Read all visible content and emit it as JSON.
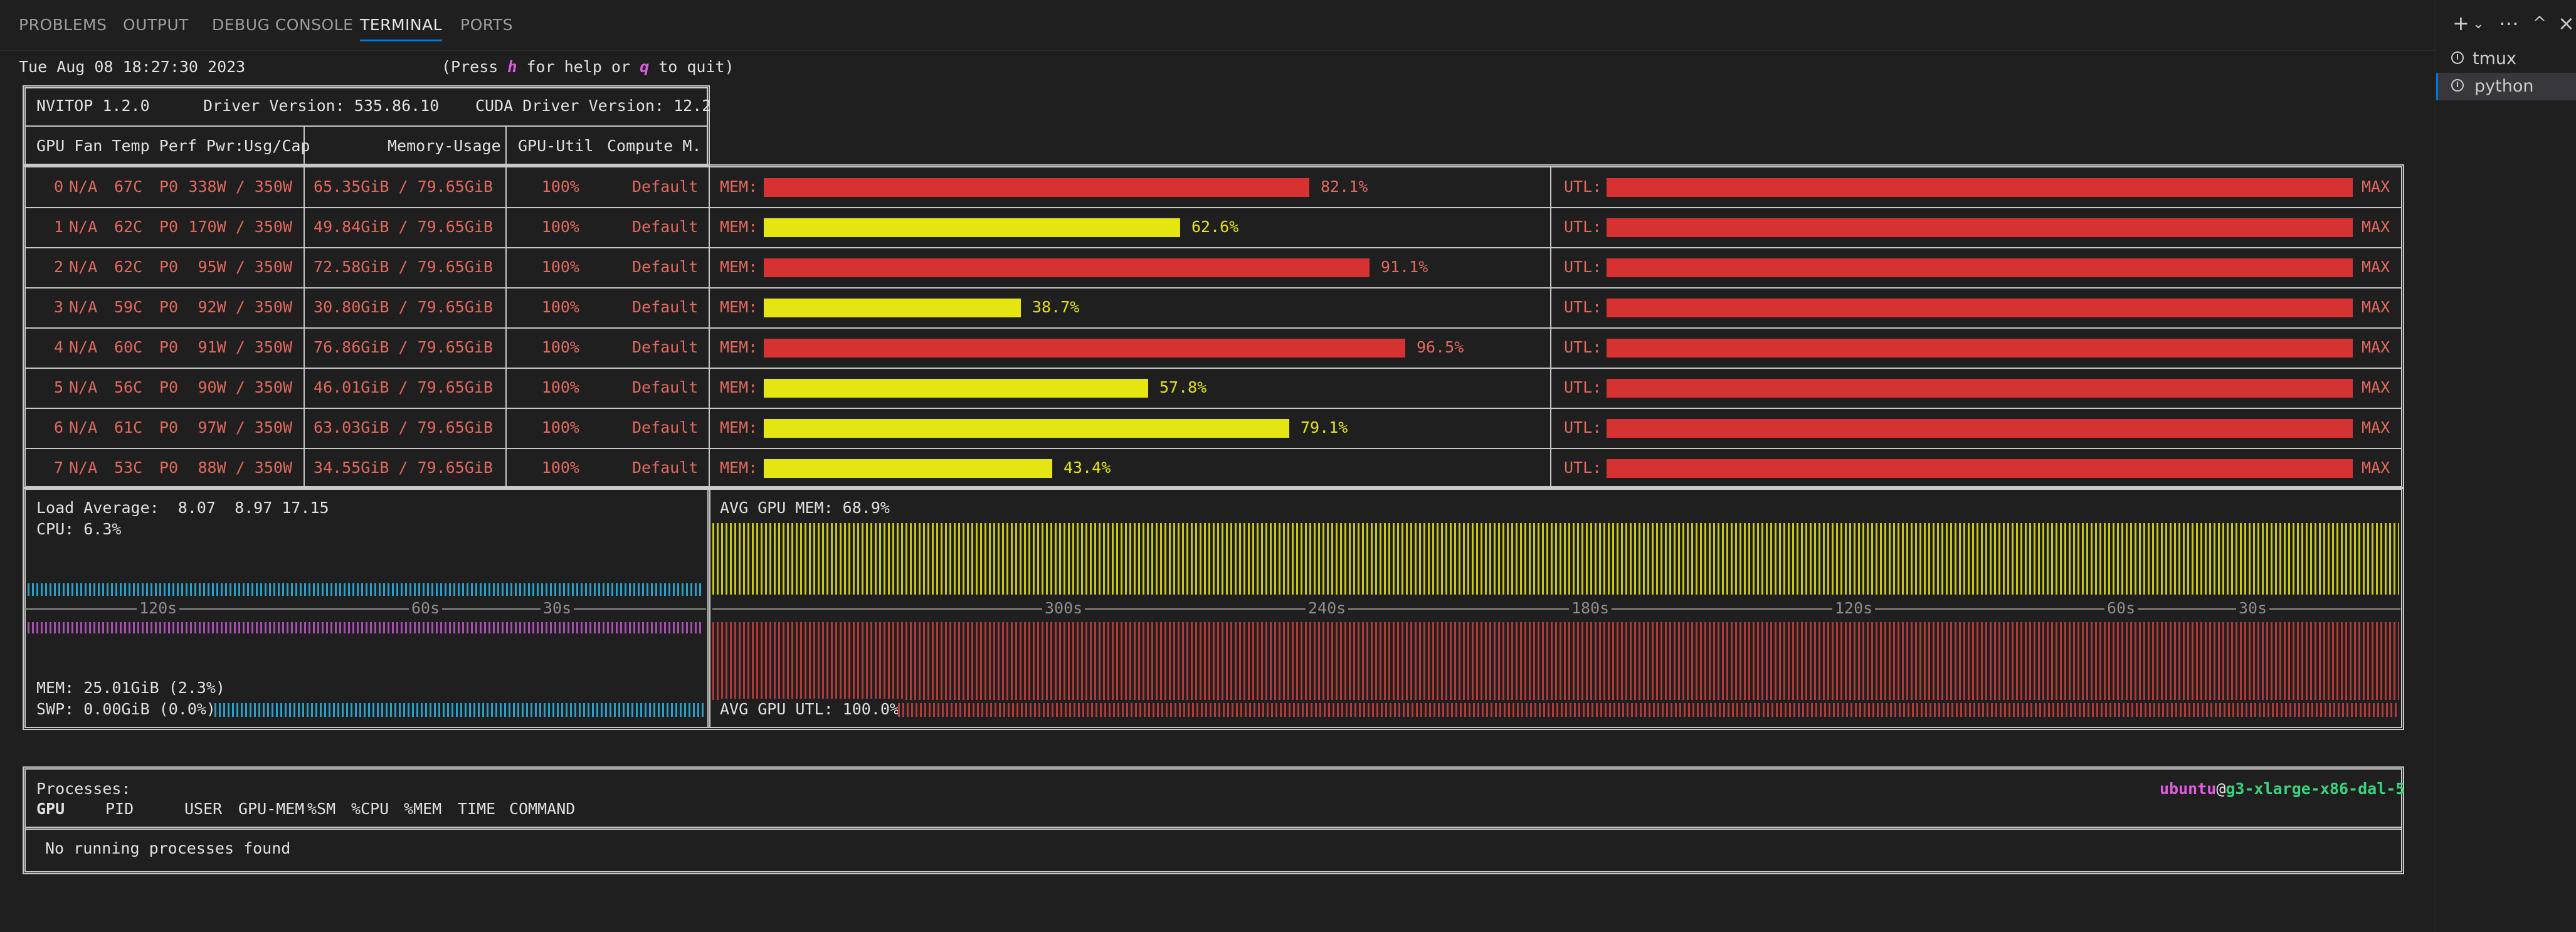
{
  "panel_tabs": [
    "PROBLEMS",
    "OUTPUT",
    "DEBUG CONSOLE",
    "TERMINAL",
    "PORTS"
  ],
  "active_tab": "TERMINAL",
  "toolbar_icons": [
    "plus-icon",
    "chevron-down-icon",
    "more-icon",
    "maximize-icon",
    "close-icon"
  ],
  "terminals": [
    {
      "name": "tmux",
      "selected": false
    },
    {
      "name": "python",
      "selected": true
    }
  ],
  "header": {
    "datetime": "Tue Aug 08 18:27:30 2023",
    "help_pre": "(Press ",
    "help_h": "h",
    "help_mid": " for help or ",
    "help_q": "q",
    "help_post": " to quit)"
  },
  "summary": {
    "nvitop": "NVITOP 1.2.0",
    "driver": "Driver Version: 535.86.10",
    "cuda": "CUDA Driver Version: 12.2"
  },
  "columns": {
    "gpu_info": "GPU Fan Temp Perf Pwr:Usg/Cap",
    "memory": "Memory-Usage",
    "util": "GPU-Util",
    "compute": "Compute M."
  },
  "mem_label": "MEM:",
  "utl_label": "UTL:",
  "gpus": [
    {
      "id": "0",
      "fan": "N/A",
      "temp": "67C",
      "perf": "P0",
      "pwr": "338W / 350W",
      "mem": "65.35GiB / 79.65GiB",
      "util": "100%",
      "mode": "Default",
      "mem_pct": 82.1,
      "mem_pct_label": "82.1%",
      "utl_label": "MAX"
    },
    {
      "id": "1",
      "fan": "N/A",
      "temp": "62C",
      "perf": "P0",
      "pwr": "170W / 350W",
      "mem": "49.84GiB / 79.65GiB",
      "util": "100%",
      "mode": "Default",
      "mem_pct": 62.6,
      "mem_pct_label": "62.6%",
      "utl_label": "MAX"
    },
    {
      "id": "2",
      "fan": "N/A",
      "temp": "62C",
      "perf": "P0",
      "pwr": "95W / 350W",
      "mem": "72.58GiB / 79.65GiB",
      "util": "100%",
      "mode": "Default",
      "mem_pct": 91.1,
      "mem_pct_label": "91.1%",
      "utl_label": "MAX"
    },
    {
      "id": "3",
      "fan": "N/A",
      "temp": "59C",
      "perf": "P0",
      "pwr": "92W / 350W",
      "mem": "30.80GiB / 79.65GiB",
      "util": "100%",
      "mode": "Default",
      "mem_pct": 38.7,
      "mem_pct_label": "38.7%",
      "utl_label": "MAX"
    },
    {
      "id": "4",
      "fan": "N/A",
      "temp": "60C",
      "perf": "P0",
      "pwr": "91W / 350W",
      "mem": "76.86GiB / 79.65GiB",
      "util": "100%",
      "mode": "Default",
      "mem_pct": 96.5,
      "mem_pct_label": "96.5%",
      "utl_label": "MAX"
    },
    {
      "id": "5",
      "fan": "N/A",
      "temp": "56C",
      "perf": "P0",
      "pwr": "90W / 350W",
      "mem": "46.01GiB / 79.65GiB",
      "util": "100%",
      "mode": "Default",
      "mem_pct": 57.8,
      "mem_pct_label": "57.8%",
      "utl_label": "MAX"
    },
    {
      "id": "6",
      "fan": "N/A",
      "temp": "61C",
      "perf": "P0",
      "pwr": "97W / 350W",
      "mem": "63.03GiB / 79.65GiB",
      "util": "100%",
      "mode": "Default",
      "mem_pct": 79.1,
      "mem_pct_label": "79.1%",
      "utl_label": "MAX"
    },
    {
      "id": "7",
      "fan": "N/A",
      "temp": "53C",
      "perf": "P0",
      "pwr": "88W / 350W",
      "mem": "34.55GiB / 79.65GiB",
      "util": "100%",
      "mode": "Default",
      "mem_pct": 43.4,
      "mem_pct_label": "43.4%",
      "utl_label": "MAX"
    }
  ],
  "host": {
    "load": "Load Average:  8.07  8.97 17.15",
    "cpu": "CPU: 6.3%",
    "mem": "MEM: 25.01GiB (2.3%)",
    "swp": "SWP: 0.00GiB (0.0%)",
    "ticks": [
      "120s",
      "60s",
      "30s"
    ]
  },
  "gpu_history": {
    "avg_mem": "AVG GPU MEM: 68.9%",
    "avg_utl": "AVG GPU UTL: 100.0%",
    "ticks": [
      "300s",
      "240s",
      "180s",
      "120s",
      "60s",
      "30s"
    ]
  },
  "processes": {
    "title": "Processes:",
    "user": "ubuntu",
    "at": "@",
    "hostname": "g3-xlarge-x86-dal-5",
    "columns": [
      "GPU",
      "PID",
      "USER",
      "GPU-MEM",
      "%SM",
      "%CPU",
      "%MEM",
      "TIME",
      "COMMAND"
    ],
    "empty": "No running processes found"
  },
  "colors": {
    "red": "#e2695e",
    "bar_red": "#d73232",
    "bar_yellow": "#e5e512",
    "accent": "#0078d4"
  }
}
